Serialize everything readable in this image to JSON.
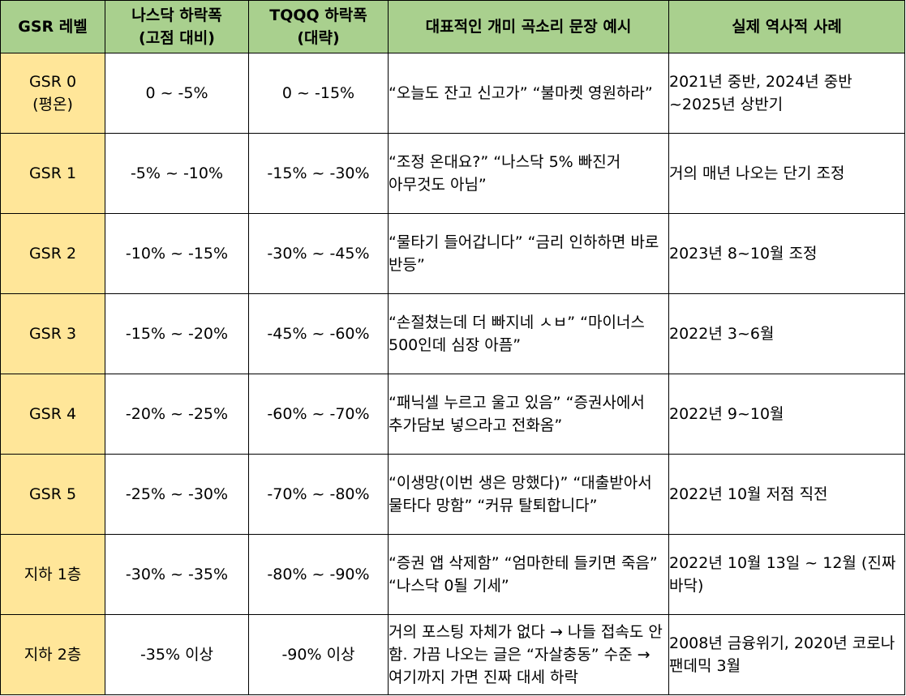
{
  "headers": {
    "level": "GSR 레벨",
    "nasdaq": "나스닥 하락폭\n(고점 대비)",
    "tqqq": "TQQQ 하락폭\n(대략)",
    "quote": "대표적인 개미 곡소리 문장 예시",
    "history": "실제 역사적 사례"
  },
  "rows": [
    {
      "level": "GSR 0\n(평온)",
      "nasdaq": "0 ~ -5%",
      "tqqq": "0 ~ -15%",
      "quote": "“오늘도 잔고 신고가” “불마켓 영원하라”",
      "history": "2021년 중반, 2024년 중반 ~2025년 상반기"
    },
    {
      "level": "GSR 1",
      "nasdaq": "-5% ~ -10%",
      "tqqq": "-15% ~ -30%",
      "quote": "“조정 온대요?” “나스닥 5% 빠진거 아무것도 아님”",
      "history": "거의 매년 나오는 단기 조정"
    },
    {
      "level": "GSR 2",
      "nasdaq": "-10% ~ -15%",
      "tqqq": "-30% ~ -45%",
      "quote": "“물타기 들어갑니다” “금리 인하하면 바로 반등”",
      "history": "2023년 8~10월 조정"
    },
    {
      "level": "GSR 3",
      "nasdaq": "-15% ~ -20%",
      "tqqq": "-45% ~ -60%",
      "quote": "“손절쳤는데 더 빠지네 ㅅㅂ” “마이너스 500인데 심장 아픔”",
      "history": "2022년 3~6월"
    },
    {
      "level": "GSR 4",
      "nasdaq": "-20% ~ -25%",
      "tqqq": "-60% ~ -70%",
      "quote": "“패닉셀 누르고 울고 있음” “증권사에서 추가담보 넣으라고 전화옴”",
      "history": "2022년 9~10월"
    },
    {
      "level": "GSR 5",
      "nasdaq": "-25% ~ -30%",
      "tqqq": "-70% ~ -80%",
      "quote": "“이생망(이번 생은 망했다)” “대출받아서 물타다 망함” “커뮤 탈퇴합니다”",
      "history": "2022년 10월 저점 직전"
    },
    {
      "level": "지하 1층",
      "nasdaq": "-30% ~ -35%",
      "tqqq": "-80% ~ -90%",
      "quote": "“증권 앱 삭제함” “엄마한테 들키면 죽음” “나스닥 0될 기세”",
      "history": "2022년 10월 13일 ~ 12월 (진짜 바닥)"
    },
    {
      "level": "지하 2층",
      "nasdaq": "-35% 이상",
      "tqqq": "-90% 이상",
      "quote": "거의 포스팅 자체가 없다 → 나들 접속도 안 함. 가끔 나오는 글은 “자살충동” 수준 → 여기까지 가면 진짜 대세 하락",
      "history": "2008년 금융위기, 2020년 코로나 팬데믹 3월"
    }
  ]
}
